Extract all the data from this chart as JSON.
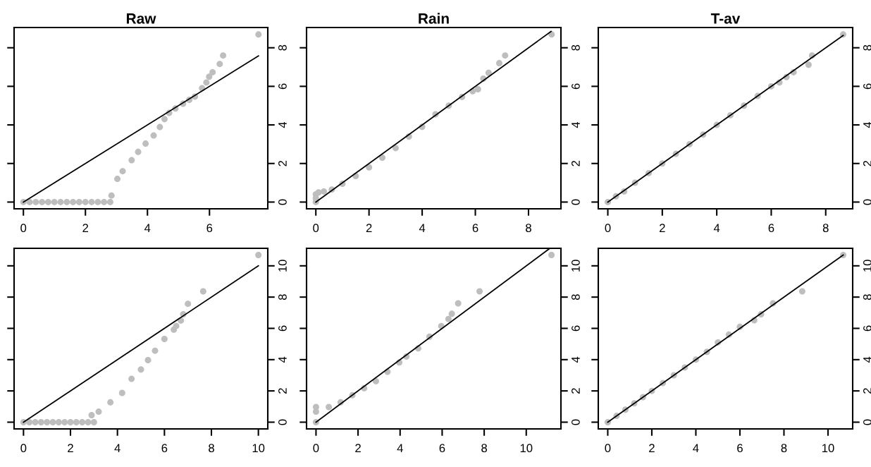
{
  "chart_data": [
    {
      "type": "scatter",
      "title": "Raw",
      "xlim": [
        -0.3,
        7.88
      ],
      "ylim": [
        -0.35,
        9.05
      ],
      "xticks": [
        0,
        2,
        4,
        6
      ],
      "yticks": [
        0,
        2,
        4,
        6,
        8
      ],
      "grid": false,
      "series": [
        {
          "marker": "circle",
          "color": "#bebebe",
          "x": [
            0,
            0.2,
            0.4,
            0.6,
            0.8,
            1,
            1.2,
            1.4,
            1.6,
            1.8,
            2,
            2.2,
            2.4,
            2.6,
            2.8,
            2.84,
            3.03,
            3.2,
            3.49,
            3.7,
            3.94,
            4.2,
            4.4,
            4.55,
            4.7,
            4.9,
            5.15,
            5.35,
            5.53,
            5.76,
            5.9,
            5.99,
            6.1,
            6.33,
            6.44,
            7.58
          ],
          "values": [
            0,
            0,
            0,
            0,
            0,
            0,
            0,
            0,
            0,
            0,
            0,
            0,
            0,
            0,
            0,
            0.34,
            1.2,
            1.6,
            2.17,
            2.6,
            3.03,
            3.45,
            3.89,
            4.3,
            4.62,
            4.85,
            5.1,
            5.3,
            5.47,
            5.9,
            6.2,
            6.5,
            6.73,
            7.16,
            7.6,
            8.69
          ]
        },
        {
          "type": "line",
          "color": "#000000",
          "x": [
            0,
            7.58
          ],
          "values": [
            0,
            7.58
          ]
        }
      ]
    },
    {
      "type": "scatter",
      "title": "Rain",
      "xlim": [
        -0.35,
        9.22
      ],
      "ylim": [
        -0.35,
        9.05
      ],
      "xticks": [
        0,
        2,
        4,
        6,
        8
      ],
      "yticks": [
        0,
        2,
        4,
        6,
        8
      ],
      "grid": false,
      "series": [
        {
          "marker": "circle",
          "color": "#bebebe",
          "x": [
            0,
            0,
            0,
            0.1,
            0.3,
            0.6,
            1,
            1.5,
            2,
            2.5,
            3,
            3.5,
            4,
            4.5,
            5,
            5.5,
            5.9,
            6.1,
            6.3,
            6.5,
            6.9,
            7.12,
            8.87
          ],
          "values": [
            0,
            0.2,
            0.4,
            0.5,
            0.55,
            0.65,
            0.95,
            1.35,
            1.8,
            2.3,
            2.8,
            3.4,
            3.9,
            4.55,
            5,
            5.45,
            5.75,
            5.85,
            6.4,
            6.7,
            7.2,
            7.6,
            8.69
          ]
        },
        {
          "type": "line",
          "color": "#000000",
          "x": [
            0,
            8.85
          ],
          "values": [
            0,
            8.85
          ]
        }
      ]
    },
    {
      "type": "scatter",
      "title": "T-av",
      "xlim": [
        -0.35,
        8.99
      ],
      "ylim": [
        -0.35,
        9.05
      ],
      "xticks": [
        0,
        2,
        4,
        6,
        8
      ],
      "yticks": [
        0,
        2,
        4,
        6,
        8
      ],
      "grid": false,
      "series": [
        {
          "marker": "circle",
          "color": "#bebebe",
          "x": [
            0,
            0.3,
            0.6,
            1,
            1.5,
            2,
            2.5,
            3,
            3.5,
            4,
            4.5,
            5,
            5.5,
            6,
            6.3,
            6.56,
            6.82,
            7.37,
            7.5,
            8.64
          ],
          "values": [
            0,
            0.3,
            0.55,
            1,
            1.5,
            2,
            2.5,
            3,
            3.5,
            4,
            4.5,
            5,
            5.5,
            6,
            6.2,
            6.48,
            6.73,
            7.12,
            7.6,
            8.69
          ]
        },
        {
          "type": "line",
          "color": "#000000",
          "x": [
            0,
            8.64
          ],
          "values": [
            0,
            8.64
          ]
        }
      ]
    },
    {
      "type": "scatter",
      "xlim": [
        -0.4,
        10.4
      ],
      "ylim": [
        -0.43,
        11.12
      ],
      "xticks": [
        0,
        2,
        4,
        6,
        8,
        10
      ],
      "yticks": [
        0,
        2,
        4,
        6,
        8,
        10
      ],
      "grid": false,
      "series": [
        {
          "marker": "circle",
          "color": "#bebebe",
          "x": [
            0,
            0.25,
            0.5,
            0.75,
            1,
            1.25,
            1.5,
            1.75,
            2,
            2.25,
            2.5,
            2.75,
            3,
            2.9,
            3.2,
            3.7,
            4.2,
            4.6,
            5,
            5.3,
            5.6,
            6,
            6.4,
            6.5,
            6.7,
            6.8,
            7,
            7.65,
            10
          ],
          "values": [
            0,
            0,
            0,
            0,
            0,
            0,
            0,
            0,
            0,
            0,
            0,
            0,
            0,
            0.45,
            0.67,
            1.27,
            1.87,
            2.77,
            3.37,
            3.97,
            4.57,
            5.32,
            5.92,
            6.15,
            6.5,
            6.9,
            7.57,
            8.37,
            10.69
          ]
        },
        {
          "type": "line",
          "color": "#000000",
          "x": [
            0,
            10
          ],
          "values": [
            0,
            10
          ]
        }
      ]
    },
    {
      "type": "scatter",
      "xlim": [
        -0.45,
        11.65
      ],
      "ylim": [
        -0.43,
        11.12
      ],
      "xticks": [
        0,
        2,
        4,
        6,
        8,
        10
      ],
      "yticks": [
        0,
        2,
        4,
        6,
        8,
        10
      ],
      "grid": false,
      "series": [
        {
          "marker": "circle",
          "color": "#bebebe",
          "x": [
            0,
            0,
            0,
            0.61,
            1.17,
            1.73,
            2.29,
            2.85,
            3.4,
            3.96,
            4.3,
            4.86,
            5.4,
            5.96,
            6.3,
            6.46,
            6.76,
            7.78,
            11.2
          ],
          "values": [
            0,
            0.67,
            0.97,
            0.97,
            1.27,
            1.72,
            2.17,
            2.62,
            3.22,
            3.82,
            4.2,
            4.72,
            5.47,
            6.15,
            6.6,
            6.93,
            7.6,
            8.37,
            10.69
          ]
        },
        {
          "type": "line",
          "color": "#000000",
          "x": [
            0,
            11.1
          ],
          "values": [
            0,
            11.1
          ]
        }
      ]
    },
    {
      "type": "scatter",
      "xlim": [
        -0.43,
        11.12
      ],
      "ylim": [
        -0.43,
        11.12
      ],
      "xticks": [
        0,
        2,
        4,
        6,
        8,
        10
      ],
      "yticks": [
        0,
        2,
        4,
        6,
        8,
        10
      ],
      "grid": false,
      "series": [
        {
          "marker": "circle",
          "color": "#bebebe",
          "x": [
            0,
            0.4,
            0.8,
            1.2,
            1.6,
            2,
            2.5,
            3,
            3.5,
            4,
            4.5,
            5,
            5.5,
            6,
            6.65,
            6.96,
            7.5,
            8.83,
            10.69
          ],
          "values": [
            0,
            0.4,
            0.8,
            1.2,
            1.6,
            2,
            2.5,
            3,
            3.5,
            4,
            4.5,
            5.1,
            5.6,
            6.1,
            6.52,
            6.9,
            7.6,
            8.37,
            10.69
          ]
        },
        {
          "type": "line",
          "color": "#000000",
          "x": [
            0,
            10.69
          ],
          "values": [
            0,
            10.69
          ]
        }
      ]
    }
  ]
}
